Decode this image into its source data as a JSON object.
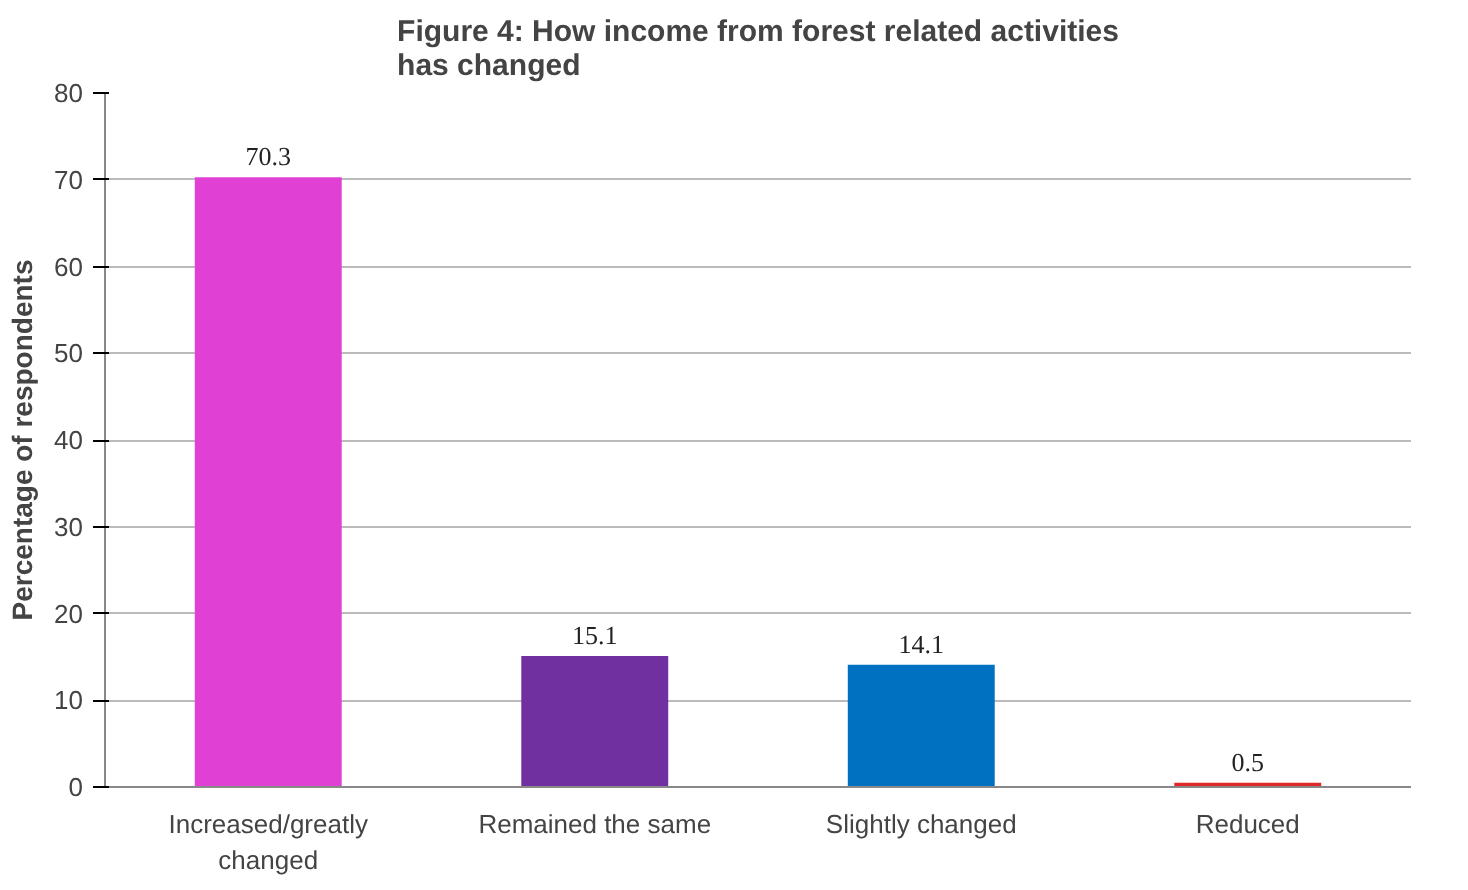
{
  "chart_data": {
    "type": "bar",
    "title": "Figure 4: How income from forest related activities has changed",
    "ylabel": "Percentage of respondents",
    "categories": [
      "Increased/greatly changed",
      "Remained the same",
      "Slightly changed",
      "Reduced"
    ],
    "values": [
      70.3,
      15.1,
      14.1,
      0.5
    ],
    "colors": [
      "#e040d4",
      "#7030a0",
      "#0070c0",
      "#e02828"
    ],
    "ylim": [
      0,
      80
    ],
    "yticks": [
      0,
      10,
      20,
      30,
      40,
      50,
      60,
      70,
      80
    ],
    "grid": "y",
    "data_labels": true
  }
}
